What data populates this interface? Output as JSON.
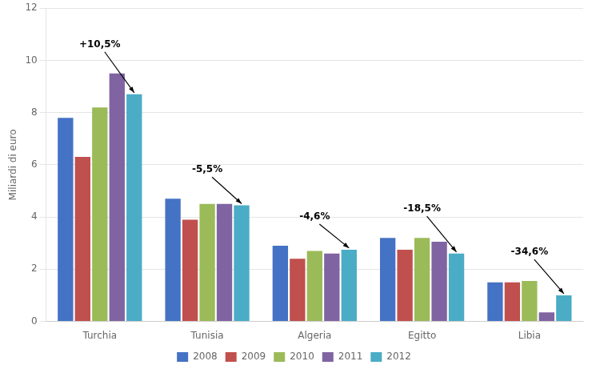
{
  "chart_data": {
    "type": "bar",
    "categories": [
      "Turchia",
      "Tunisia",
      "Algeria",
      "Egitto",
      "Libia"
    ],
    "series": [
      {
        "name": "2008",
        "color": "#4472C4",
        "values": [
          7.8,
          4.7,
          2.9,
          3.2,
          1.5
        ]
      },
      {
        "name": "2009",
        "color": "#C0504D",
        "values": [
          6.3,
          3.9,
          2.4,
          2.75,
          1.5
        ]
      },
      {
        "name": "2010",
        "color": "#9BBB59",
        "values": [
          8.2,
          4.5,
          2.7,
          3.2,
          1.55
        ]
      },
      {
        "name": "2011",
        "color": "#8064A2",
        "values": [
          9.5,
          4.5,
          2.6,
          3.05,
          0.35
        ]
      },
      {
        "name": "2012",
        "color": "#4BACC6",
        "values": [
          8.7,
          4.45,
          2.75,
          2.6,
          1.0
        ]
      }
    ],
    "ylabel": "Miliardi di euro",
    "ylim": [
      0,
      12
    ],
    "yticks": [
      0,
      2,
      4,
      6,
      8,
      10,
      12
    ],
    "grid": true,
    "legend": "bottom",
    "annotations": [
      "+10,5%",
      "-5,5%",
      "-4,6%",
      "-18,5%",
      "-34,6%"
    ]
  }
}
